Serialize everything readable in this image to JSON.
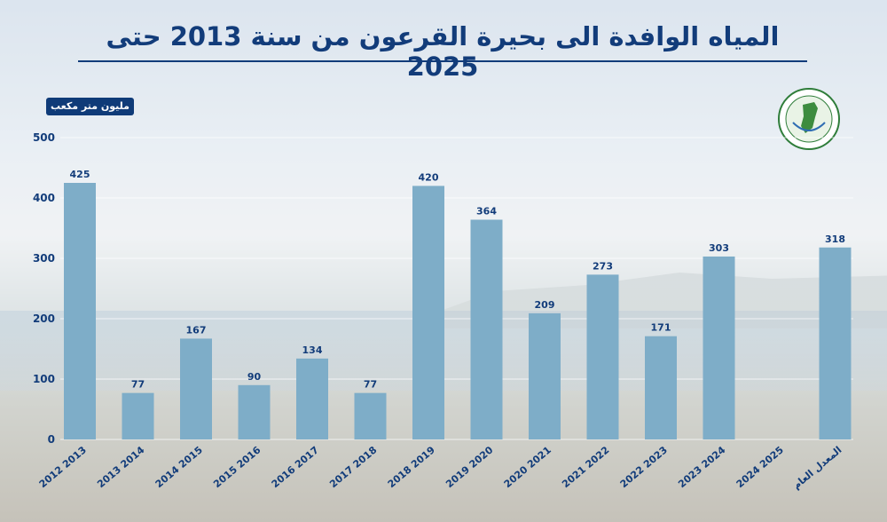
{
  "title": "المياه الوافدة الى بحيرة القرعون من سنة 2013 حتى 2025",
  "unit_label": "مليون متر مكعب",
  "colors": {
    "bar": "#7eadc8",
    "text": "#123c7a",
    "badge": "#0f3b78",
    "grid": "#ffffff"
  },
  "logo": {
    "icon": "national-litani-office-logo-icon"
  },
  "chart_data": {
    "type": "bar",
    "title": "المياه الوافدة الى بحيرة القرعون من سنة 2013 حتى 2025",
    "ylabel": "مليون متر مكعب",
    "xlabel": "",
    "ylim": [
      0,
      500
    ],
    "yticks": [
      0,
      100,
      200,
      300,
      400,
      500
    ],
    "grid": true,
    "categories": [
      "2012 2013",
      "2013 2014",
      "2014 2015",
      "2015 2016",
      "2016 2017",
      "2017 2018",
      "2018 2019",
      "2019 2020",
      "2020 2021",
      "2021 2022",
      "2022 2023",
      "2023 2024",
      "2024 2025",
      "المعدل العام"
    ],
    "values": [
      425,
      77,
      167,
      90,
      134,
      77,
      420,
      364,
      209,
      273,
      171,
      303,
      null,
      318
    ],
    "labels": [
      "425",
      "77",
      "167",
      "90",
      "134",
      "77",
      "420",
      "364",
      "209",
      "273",
      "171",
      "303",
      "",
      "318"
    ]
  }
}
